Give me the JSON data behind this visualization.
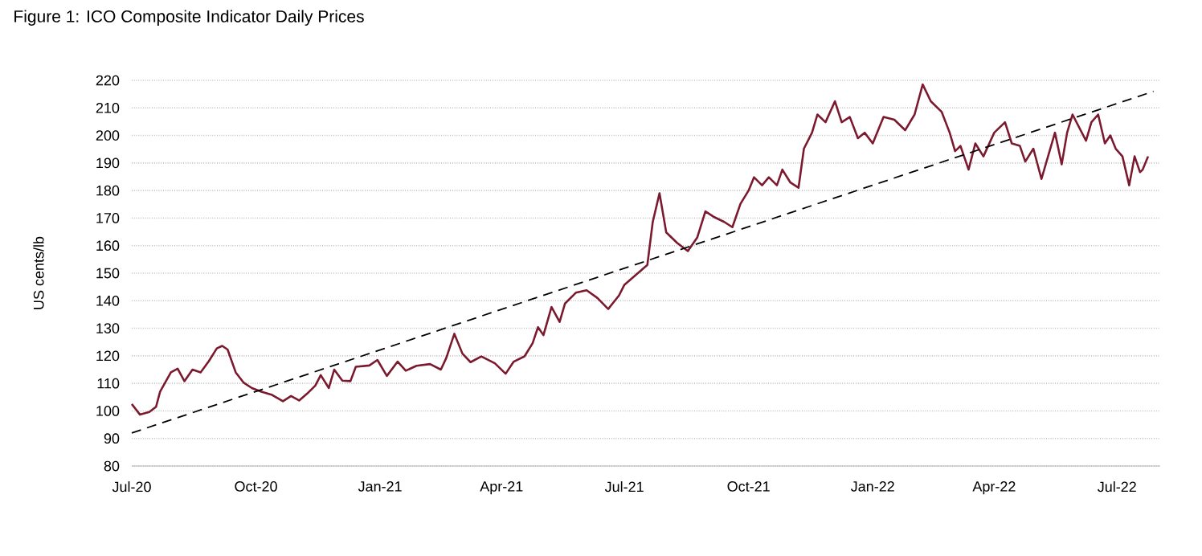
{
  "chart_data": {
    "type": "line",
    "title": "Figure 1: ICO Composite Indicator Daily Prices",
    "ylabel": "US cents/lb",
    "xlim": [
      "2020-07-01",
      "2022-08-02"
    ],
    "ylim": [
      80,
      220
    ],
    "yticks": [
      80,
      90,
      100,
      110,
      120,
      130,
      140,
      150,
      160,
      170,
      180,
      190,
      200,
      210,
      220
    ],
    "xticks": [
      {
        "value": "2020-07-01",
        "label": "Jul-20"
      },
      {
        "value": "2020-10-01",
        "label": "Oct-20"
      },
      {
        "value": "2021-01-01",
        "label": "Jan-21"
      },
      {
        "value": "2021-04-01",
        "label": "Apr-21"
      },
      {
        "value": "2021-07-01",
        "label": "Jul-21"
      },
      {
        "value": "2021-10-01",
        "label": "Oct-21"
      },
      {
        "value": "2022-01-01",
        "label": "Jan-22"
      },
      {
        "value": "2022-04-01",
        "label": "Apr-22"
      },
      {
        "value": "2022-07-01",
        "label": "Jul-22"
      }
    ],
    "grid": "y",
    "series": [
      {
        "color": "#7b1a2e",
        "line_style": "solid",
        "x": [
          "2020-07-01",
          "2020-07-07",
          "2020-07-14",
          "2020-07-19",
          "2020-07-22",
          "2020-07-30",
          "2020-08-04",
          "2020-08-09",
          "2020-08-15",
          "2020-08-21",
          "2020-08-27",
          "2020-09-02",
          "2020-09-06",
          "2020-09-10",
          "2020-09-16",
          "2020-09-22",
          "2020-09-28",
          "2020-10-05",
          "2020-10-13",
          "2020-10-21",
          "2020-10-27",
          "2020-11-02",
          "2020-11-08",
          "2020-11-14",
          "2020-11-18",
          "2020-11-24",
          "2020-11-28",
          "2020-12-04",
          "2020-12-10",
          "2020-12-14",
          "2020-12-24",
          "2020-12-30",
          "2021-01-06",
          "2021-01-14",
          "2021-01-20",
          "2021-01-28",
          "2021-02-07",
          "2021-02-15",
          "2021-02-19",
          "2021-02-25",
          "2021-03-03",
          "2021-03-09",
          "2021-03-17",
          "2021-03-27",
          "2021-04-04",
          "2021-04-10",
          "2021-04-18",
          "2021-04-24",
          "2021-04-28",
          "2021-05-02",
          "2021-05-08",
          "2021-05-14",
          "2021-05-18",
          "2021-05-26",
          "2021-06-03",
          "2021-06-11",
          "2021-06-19",
          "2021-06-27",
          "2021-07-01",
          "2021-07-18",
          "2021-07-22",
          "2021-07-27",
          "2021-08-01",
          "2021-08-09",
          "2021-08-17",
          "2021-08-24",
          "2021-08-30",
          "2021-09-05",
          "2021-09-13",
          "2021-09-19",
          "2021-09-25",
          "2021-10-01",
          "2021-10-05",
          "2021-10-11",
          "2021-10-16",
          "2021-10-22",
          "2021-10-26",
          "2021-11-01",
          "2021-11-07",
          "2021-11-11",
          "2021-11-17",
          "2021-11-21",
          "2021-11-27",
          "2021-12-04",
          "2021-12-09",
          "2021-12-15",
          "2021-12-21",
          "2021-12-26",
          "2022-01-01",
          "2022-01-09",
          "2022-01-17",
          "2022-01-25",
          "2022-02-01",
          "2022-02-07",
          "2022-02-13",
          "2022-02-21",
          "2022-02-27",
          "2022-03-03",
          "2022-03-07",
          "2022-03-13",
          "2022-03-18",
          "2022-03-24",
          "2022-04-01",
          "2022-04-09",
          "2022-04-14",
          "2022-04-20",
          "2022-04-24",
          "2022-04-30",
          "2022-05-06",
          "2022-05-12",
          "2022-05-16",
          "2022-05-21",
          "2022-05-25",
          "2022-05-29",
          "2022-06-02",
          "2022-06-08",
          "2022-06-12",
          "2022-06-17",
          "2022-06-22",
          "2022-06-26",
          "2022-06-30",
          "2022-07-05",
          "2022-07-10",
          "2022-07-14",
          "2022-07-18",
          "2022-07-20",
          "2022-07-24"
        ],
        "values": [
          102.5,
          98.7,
          99.6,
          101.5,
          107,
          114,
          115.3,
          110.8,
          115,
          114,
          118,
          122.7,
          123.6,
          122.3,
          114,
          110.2,
          108.3,
          107,
          105.8,
          103.5,
          105.4,
          103.8,
          106.3,
          109.2,
          113,
          108.3,
          115,
          111,
          110.8,
          116,
          116.5,
          118.5,
          112.7,
          117.9,
          114.6,
          116.4,
          117,
          115,
          119.2,
          128,
          120.8,
          117.7,
          119.8,
          117.3,
          113.5,
          117.9,
          119.8,
          124.6,
          130.4,
          127.5,
          137.7,
          132.3,
          139,
          142.9,
          143.8,
          141,
          137,
          141.9,
          145.8,
          153,
          168.6,
          179,
          164.8,
          161,
          158,
          163,
          172.4,
          170.5,
          168.6,
          166.7,
          175.2,
          180,
          184.8,
          181.9,
          184.8,
          181.9,
          187.6,
          182.9,
          181,
          195.2,
          201,
          207.6,
          204.8,
          212.4,
          204.8,
          206.7,
          199,
          201,
          197.1,
          206.7,
          205.7,
          201.9,
          207.6,
          218.5,
          212.4,
          208.6,
          201,
          194.3,
          196.2,
          187.6,
          197.1,
          192.4,
          201,
          204.8,
          197.1,
          196.2,
          190.5,
          195.2,
          184.2,
          194.3,
          201,
          189.5,
          201,
          207.6,
          203.8,
          198.1,
          204.8,
          207.6,
          197.1,
          200,
          195.2,
          192.4,
          181.9,
          192.4,
          186.7,
          187.6,
          192.4
        ]
      },
      {
        "type": "line",
        "color": "#000000",
        "line_style": "dashed",
        "x": [
          "2020-07-01",
          "2022-07-28"
        ],
        "values": [
          92,
          216
        ]
      }
    ]
  }
}
